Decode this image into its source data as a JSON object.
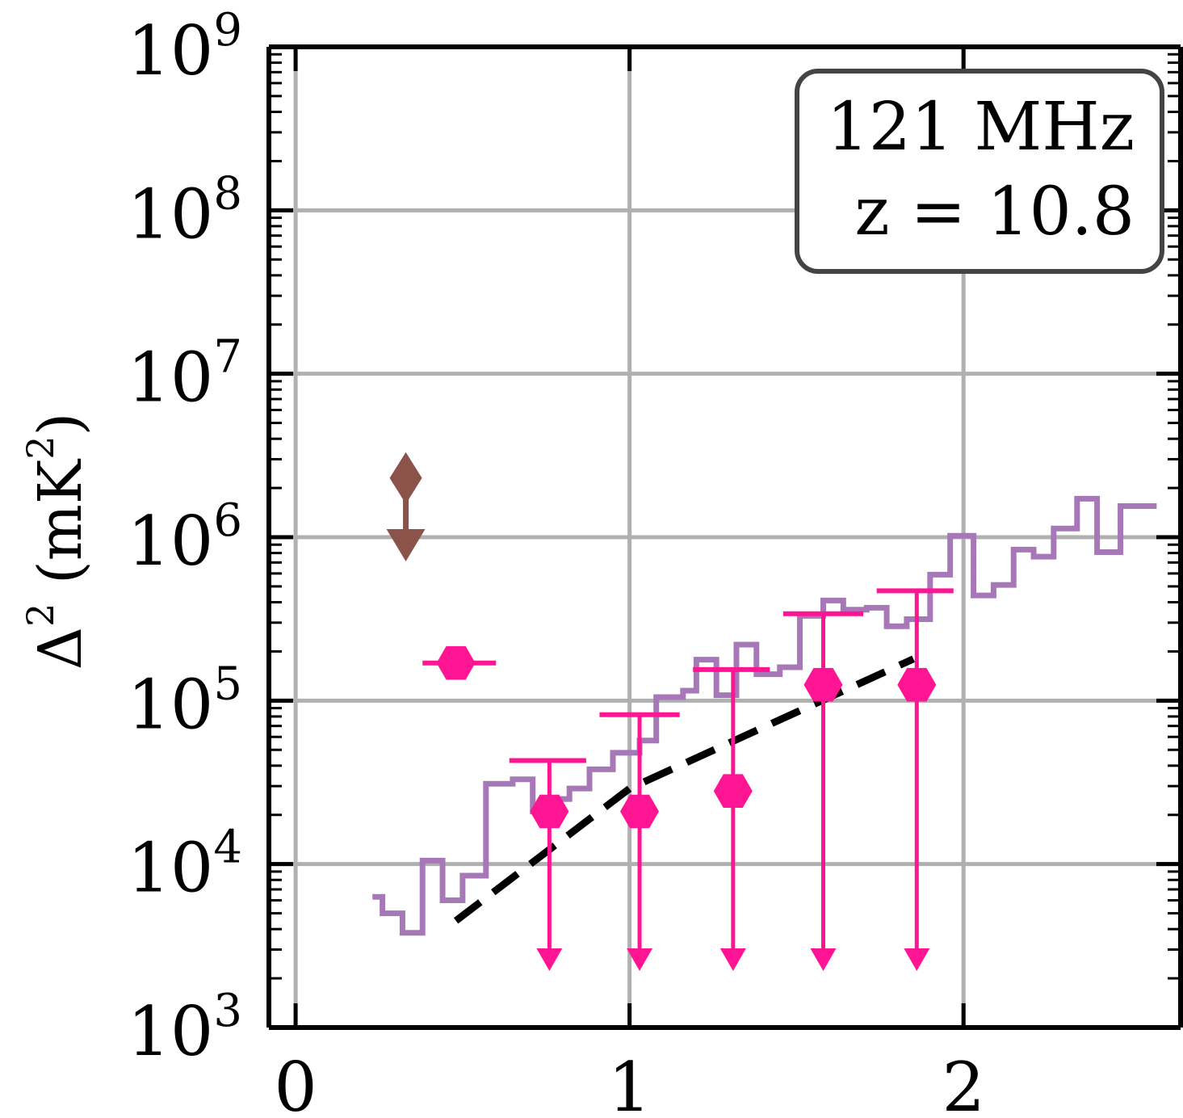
{
  "chart_data": {
    "type": "scatter",
    "title": "",
    "xlabel": "",
    "ylabel": "Δ² (mK²)",
    "ylabel_parts": {
      "main": "Δ",
      "sup": "2",
      "unit_open": "(mK",
      "unit_sup": "2",
      "unit_close": ")"
    },
    "y_scale": "log",
    "xlim": [
      -0.08,
      2.65
    ],
    "ylim_exponent": [
      3,
      9
    ],
    "x_ticks": [
      0,
      1,
      2
    ],
    "x_tick_labels": [
      "0",
      "1",
      "2"
    ],
    "y_ticks_exponent": [
      3,
      4,
      5,
      6,
      7,
      8,
      9
    ],
    "y_tick_label_base": "10",
    "y_tick_label_exponents": [
      "3",
      "4",
      "5",
      "6",
      "7",
      "8",
      "9"
    ],
    "grid": true,
    "annotation": {
      "line1": "121 MHz",
      "line2": "z = 10.8",
      "placement": "top-right"
    },
    "colors": {
      "measurement": "#ff1493",
      "step_line": "#a678b8",
      "model_dashed": "#000000",
      "upper_limit_brown": "#8b5349",
      "grid": "#b0b0b0",
      "annotation_border": "#444444"
    },
    "series": [
      {
        "kind": "step",
        "color": "#a678b8",
        "points": [
          [
            0.23,
            6300
          ],
          [
            0.26,
            5000
          ],
          [
            0.32,
            3800
          ],
          [
            0.38,
            10500
          ],
          [
            0.44,
            6000
          ],
          [
            0.5,
            8500
          ],
          [
            0.57,
            31000
          ],
          [
            0.65,
            33000
          ],
          [
            0.71,
            21000
          ],
          [
            0.78,
            25000
          ],
          [
            0.82,
            29000
          ],
          [
            0.88,
            38000
          ],
          [
            0.95,
            48000
          ],
          [
            1.03,
            57000
          ],
          [
            1.08,
            105000
          ],
          [
            1.16,
            115000
          ],
          [
            1.2,
            178000
          ],
          [
            1.26,
            108000
          ],
          [
            1.32,
            220000
          ],
          [
            1.38,
            145000
          ],
          [
            1.45,
            160000
          ],
          [
            1.51,
            330000
          ],
          [
            1.58,
            410000
          ],
          [
            1.64,
            360000
          ],
          [
            1.71,
            370000
          ],
          [
            1.77,
            285000
          ],
          [
            1.83,
            315000
          ],
          [
            1.9,
            590000
          ],
          [
            1.96,
            1020000
          ],
          [
            2.03,
            440000
          ],
          [
            2.09,
            510000
          ],
          [
            2.15,
            840000
          ],
          [
            2.21,
            760000
          ],
          [
            2.27,
            1130000
          ],
          [
            2.34,
            1720000
          ],
          [
            2.4,
            810000
          ],
          [
            2.47,
            1550000
          ],
          [
            2.53,
            1550000
          ]
        ]
      },
      {
        "kind": "dashed-line",
        "color": "#000000",
        "points": [
          [
            0.48,
            4500
          ],
          [
            1.0,
            29000
          ],
          [
            1.5,
            85000
          ],
          [
            1.85,
            180000
          ]
        ]
      },
      {
        "kind": "upper-limit",
        "color": "#8b5349",
        "points": [
          {
            "x": 0.33,
            "y": 2300000,
            "arrow_to": 1000000
          }
        ]
      },
      {
        "kind": "hexagon-points",
        "color": "#ff1493",
        "points": [
          {
            "x": 0.48,
            "y": 170000,
            "xerr": [
              0.38,
              0.6
            ]
          },
          {
            "x": 0.76,
            "y": 21000,
            "xerr": [
              0.64,
              0.87
            ],
            "upper": 43000,
            "lower_arrow": 2600
          },
          {
            "x": 1.03,
            "y": 21000,
            "xerr": [
              0.91,
              1.15
            ],
            "upper": 82000,
            "lower_arrow": 2600
          },
          {
            "x": 1.31,
            "y": 28000,
            "xerr": [
              1.19,
              1.42
            ],
            "upper": 155000,
            "lower_arrow": 2600
          },
          {
            "x": 1.58,
            "y": 125000,
            "xerr": [
              1.46,
              1.7
            ],
            "upper": 340000,
            "lower_arrow": 2600
          },
          {
            "x": 1.86,
            "y": 125000,
            "xerr": [
              1.74,
              1.97
            ],
            "upper": 470000,
            "lower_arrow": 2600
          }
        ]
      }
    ]
  }
}
